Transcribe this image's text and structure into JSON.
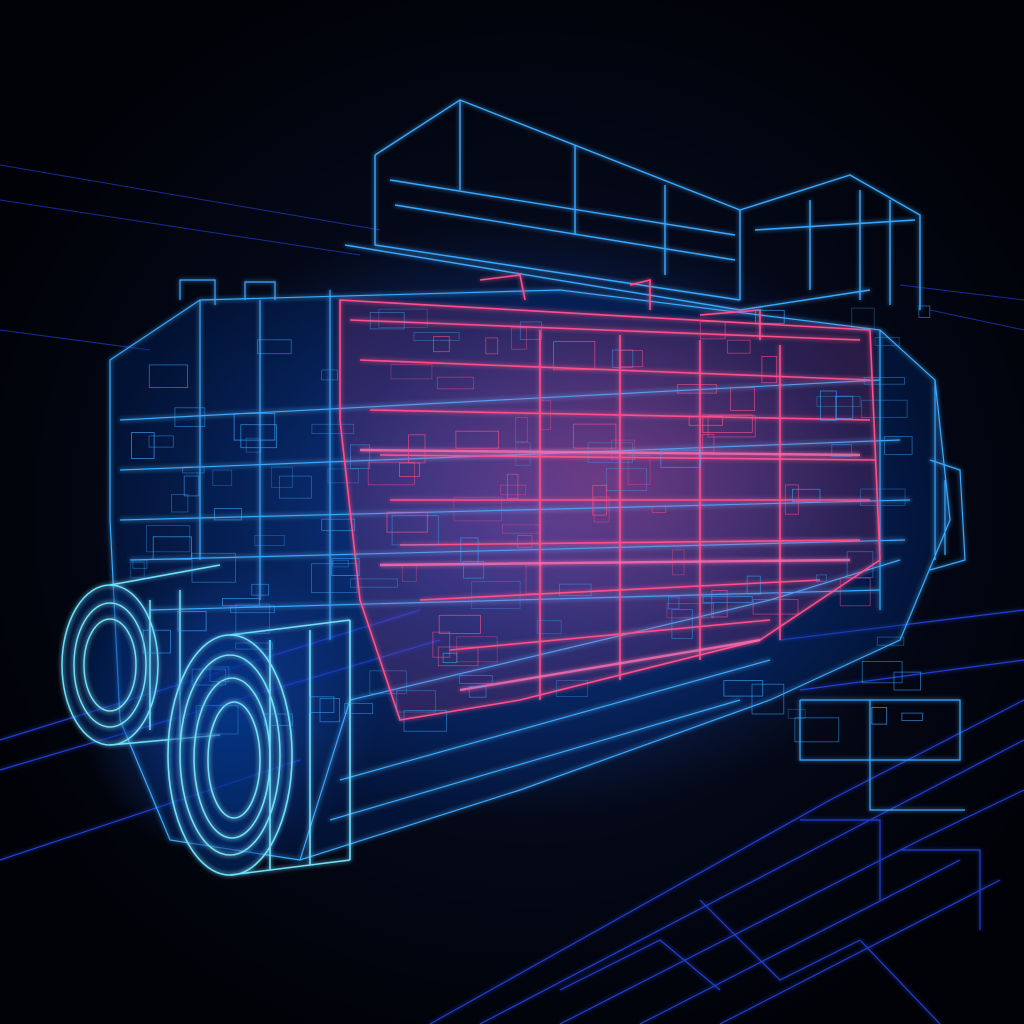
{
  "image": {
    "subject": "holographic-wireframe-engine",
    "colors": {
      "background": "#02030a",
      "wire_blue": "#3aa8ff",
      "wire_cyan": "#6fe0ff",
      "wire_deep_blue": "#2a4dff",
      "wire_pink": "#ff4f8a",
      "wire_magenta": "#ff6fb0",
      "glow": "#1e6bff"
    }
  }
}
